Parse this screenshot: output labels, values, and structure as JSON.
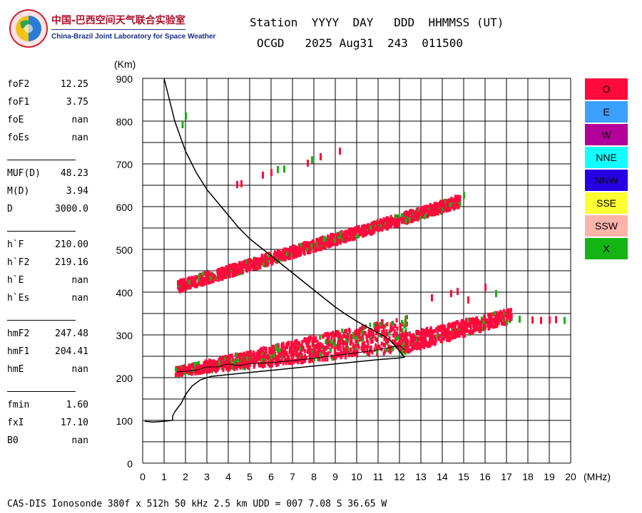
{
  "org": {
    "name_cn": "中国-巴西空间天气联合实验室",
    "name_en": "China-Brazil Joint Laboratory for Space Weather"
  },
  "header": {
    "line1": "Station  YYYY  DAY   DDD  HHMMSS (UT)",
    "line2": "OCGD   2025 Aug31  243  011500"
  },
  "params": [
    {
      "k": "foF2",
      "v": "12.25"
    },
    {
      "k": "foF1",
      "v": "3.75"
    },
    {
      "k": "foE",
      "v": "nan"
    },
    {
      "k": "foEs",
      "v": "nan"
    },
    {
      "k": "MUF(D)",
      "v": "48.23"
    },
    {
      "k": "M(D)",
      "v": "3.94"
    },
    {
      "k": "D",
      "v": "3000.0"
    },
    {
      "k": "h`F",
      "v": "210.00"
    },
    {
      "k": "h`F2",
      "v": "219.16"
    },
    {
      "k": "h`E",
      "v": "nan"
    },
    {
      "k": "h`Es",
      "v": "nan"
    },
    {
      "k": "hmF2",
      "v": "247.48"
    },
    {
      "k": "hmF1",
      "v": "204.41"
    },
    {
      "k": "hmE",
      "v": "nan"
    },
    {
      "k": "fmin",
      "v": "1.60"
    },
    {
      "k": "fxI",
      "v": "17.10"
    },
    {
      "k": "B0",
      "v": "nan"
    }
  ],
  "legend": [
    {
      "label": "O",
      "color": "#ff0a3c"
    },
    {
      "label": "E",
      "color": "#3ca0ff"
    },
    {
      "label": "W",
      "color": "#b4009a"
    },
    {
      "label": "NNE",
      "color": "#14ffff"
    },
    {
      "label": "NNW",
      "color": "#2800e6"
    },
    {
      "label": "SSE",
      "color": "#ffff32"
    },
    {
      "label": "SSW",
      "color": "#ffb4aa"
    },
    {
      "label": "X",
      "color": "#14b414"
    }
  ],
  "footer": "CAS-DIS Ionosonde 380f x 512h 50 kHz 2.5 km UDD = 007 7.08 S 36.65 W",
  "chart_data": {
    "type": "scatter",
    "xlabel": "(MHz)",
    "ylabel": "(Km)",
    "xlim": [
      0,
      20
    ],
    "ylim": [
      0,
      900
    ],
    "xticks": [
      0,
      1,
      2,
      3,
      4,
      5,
      6,
      7,
      8,
      9,
      10,
      11,
      12,
      13,
      14,
      15,
      16,
      17,
      18,
      19,
      20
    ],
    "yticks": [
      0,
      100,
      200,
      300,
      400,
      500,
      600,
      700,
      800,
      900
    ],
    "grid": true,
    "bands": [
      {
        "mode": "O",
        "x_start": 1.6,
        "x_end": 14.8,
        "y_lower_start": 400,
        "y_lower_end": 600,
        "y_upper_start": 425,
        "y_upper_end": 625
      },
      {
        "mode": "O",
        "x_start": 1.5,
        "x_end": 12.3,
        "y_lower_start": 205,
        "y_lower_end": 262,
        "y_upper_start": 222,
        "y_upper_end": 345
      },
      {
        "mode": "O",
        "x_start": 12.0,
        "x_end": 17.2,
        "y_lower_start": 255,
        "y_lower_end": 330,
        "y_upper_start": 300,
        "y_upper_end": 360
      }
    ],
    "points": [
      {
        "x": 1.85,
        "y": 790,
        "mode": "X"
      },
      {
        "x": 2.0,
        "y": 810,
        "mode": "X"
      },
      {
        "x": 4.4,
        "y": 650,
        "mode": "O"
      },
      {
        "x": 4.6,
        "y": 652,
        "mode": "O"
      },
      {
        "x": 5.6,
        "y": 672,
        "mode": "O"
      },
      {
        "x": 6.0,
        "y": 678,
        "mode": "O"
      },
      {
        "x": 6.3,
        "y": 685,
        "mode": "X"
      },
      {
        "x": 6.6,
        "y": 686,
        "mode": "X"
      },
      {
        "x": 7.7,
        "y": 700,
        "mode": "O"
      },
      {
        "x": 7.9,
        "y": 708,
        "mode": "X"
      },
      {
        "x": 8.3,
        "y": 715,
        "mode": "O"
      },
      {
        "x": 9.2,
        "y": 728,
        "mode": "O"
      },
      {
        "x": 14.6,
        "y": 618,
        "mode": "O"
      },
      {
        "x": 15.0,
        "y": 625,
        "mode": "X"
      },
      {
        "x": 18.2,
        "y": 333,
        "mode": "O"
      },
      {
        "x": 18.6,
        "y": 332,
        "mode": "O"
      },
      {
        "x": 19.0,
        "y": 333,
        "mode": "O"
      },
      {
        "x": 19.3,
        "y": 334,
        "mode": "O"
      },
      {
        "x": 19.7,
        "y": 332,
        "mode": "X"
      },
      {
        "x": 17.6,
        "y": 335,
        "mode": "X"
      },
      {
        "x": 14.4,
        "y": 395,
        "mode": "O"
      },
      {
        "x": 14.7,
        "y": 400,
        "mode": "O"
      },
      {
        "x": 15.2,
        "y": 380,
        "mode": "O"
      },
      {
        "x": 16.0,
        "y": 410,
        "mode": "O"
      },
      {
        "x": 16.5,
        "y": 395,
        "mode": "X"
      },
      {
        "x": 13.5,
        "y": 385,
        "mode": "O"
      }
    ],
    "profile_curve": [
      [
        1.0,
        900
      ],
      [
        1.2,
        860
      ],
      [
        1.5,
        800
      ],
      [
        2.0,
        730
      ],
      [
        2.5,
        680
      ],
      [
        3.0,
        640
      ],
      [
        3.5,
        610
      ],
      [
        4.0,
        580
      ],
      [
        4.5,
        550
      ],
      [
        5.0,
        525
      ],
      [
        5.5,
        505
      ],
      [
        6.0,
        485
      ],
      [
        6.5,
        465
      ],
      [
        7.0,
        445
      ],
      [
        7.5,
        425
      ],
      [
        8.0,
        405
      ],
      [
        8.5,
        385
      ],
      [
        9.0,
        365
      ],
      [
        9.5,
        348
      ],
      [
        10.0,
        332
      ],
      [
        10.5,
        318
      ],
      [
        11.0,
        305
      ],
      [
        11.5,
        290
      ],
      [
        11.8,
        275
      ],
      [
        12.0,
        262
      ],
      [
        12.25,
        248
      ]
    ],
    "lower_curve": [
      [
        0.1,
        98
      ],
      [
        0.5,
        96
      ],
      [
        1.0,
        98
      ],
      [
        1.4,
        100
      ],
      [
        1.4,
        110
      ],
      [
        1.5,
        120
      ],
      [
        1.8,
        140
      ],
      [
        2.0,
        160
      ],
      [
        2.3,
        180
      ],
      [
        2.7,
        195
      ],
      [
        3.2,
        203
      ],
      [
        4.0,
        207
      ],
      [
        5.0,
        212
      ],
      [
        6.0,
        217
      ],
      [
        7.0,
        222
      ],
      [
        8.0,
        227
      ],
      [
        9.0,
        232
      ],
      [
        10.0,
        237
      ],
      [
        11.0,
        242
      ],
      [
        12.0,
        246
      ],
      [
        12.25,
        248
      ]
    ],
    "trace_curve": [
      [
        1.6,
        213
      ],
      [
        2.0,
        215
      ],
      [
        2.5,
        217
      ],
      [
        3.0,
        225
      ],
      [
        3.5,
        225
      ],
      [
        4.0,
        232
      ],
      [
        4.5,
        228
      ],
      [
        5.0,
        233
      ],
      [
        6.0,
        235
      ],
      [
        7.0,
        240
      ],
      [
        8.0,
        245
      ],
      [
        9.0,
        252
      ],
      [
        10.0,
        258
      ],
      [
        11.0,
        265
      ],
      [
        12.0,
        275
      ],
      [
        12.25,
        265
      ]
    ]
  }
}
